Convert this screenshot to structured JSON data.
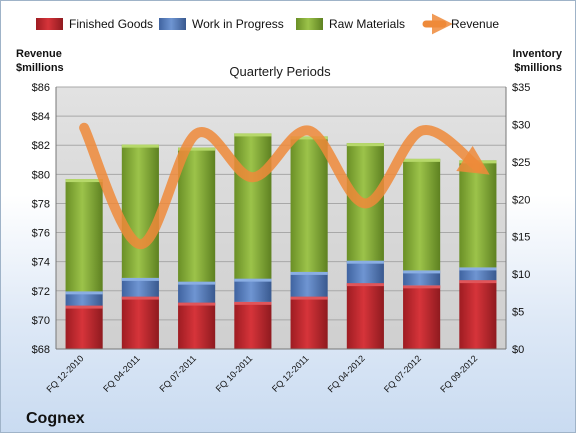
{
  "chart_data": {
    "type": "bar",
    "subtitle": "Quarterly Periods",
    "company": "Cognex",
    "left_axis_label": [
      "Revenue",
      "$millions"
    ],
    "right_axis_label": [
      "Inventory",
      "$millions"
    ],
    "categories": [
      "FQ 12-2010",
      "FQ 04-2011",
      "FQ 07-2011",
      "FQ 10-2011",
      "FQ 12-2011",
      "FQ 04-2012",
      "FQ 07-2012",
      "FQ 09-2012"
    ],
    "left_ylim": [
      68,
      86
    ],
    "left_ticks": [
      "$68",
      "$70",
      "$72",
      "$74",
      "$76",
      "$78",
      "$80",
      "$82",
      "$84",
      "$86"
    ],
    "right_ylim": [
      0,
      35
    ],
    "right_ticks": [
      "$0",
      "$5",
      "$10",
      "$15",
      "$20",
      "$25",
      "$30",
      "$35"
    ],
    "grid": true,
    "legend_position": "top",
    "series": [
      {
        "name": "Finished Goods",
        "axis": "right",
        "color": "#c0272d",
        "values": [
          5.8,
          7.0,
          6.2,
          6.3,
          7.0,
          8.8,
          8.5,
          9.2
        ]
      },
      {
        "name": "Work in Progress",
        "axis": "right",
        "color": "#5a82c2",
        "values": [
          1.9,
          2.5,
          2.8,
          3.1,
          3.3,
          3.0,
          2.0,
          1.7
        ]
      },
      {
        "name": "Raw Materials",
        "axis": "right",
        "color": "#8cb43c",
        "values": [
          15.0,
          17.8,
          17.9,
          19.4,
          18.1,
          15.7,
          14.9,
          14.3
        ]
      },
      {
        "name": "Revenue",
        "axis": "left",
        "type": "line",
        "color": "#ee8a3a",
        "values": [
          83.2,
          75.2,
          82.8,
          79.8,
          83.0,
          78.0,
          83.0,
          80.5
        ]
      }
    ]
  }
}
